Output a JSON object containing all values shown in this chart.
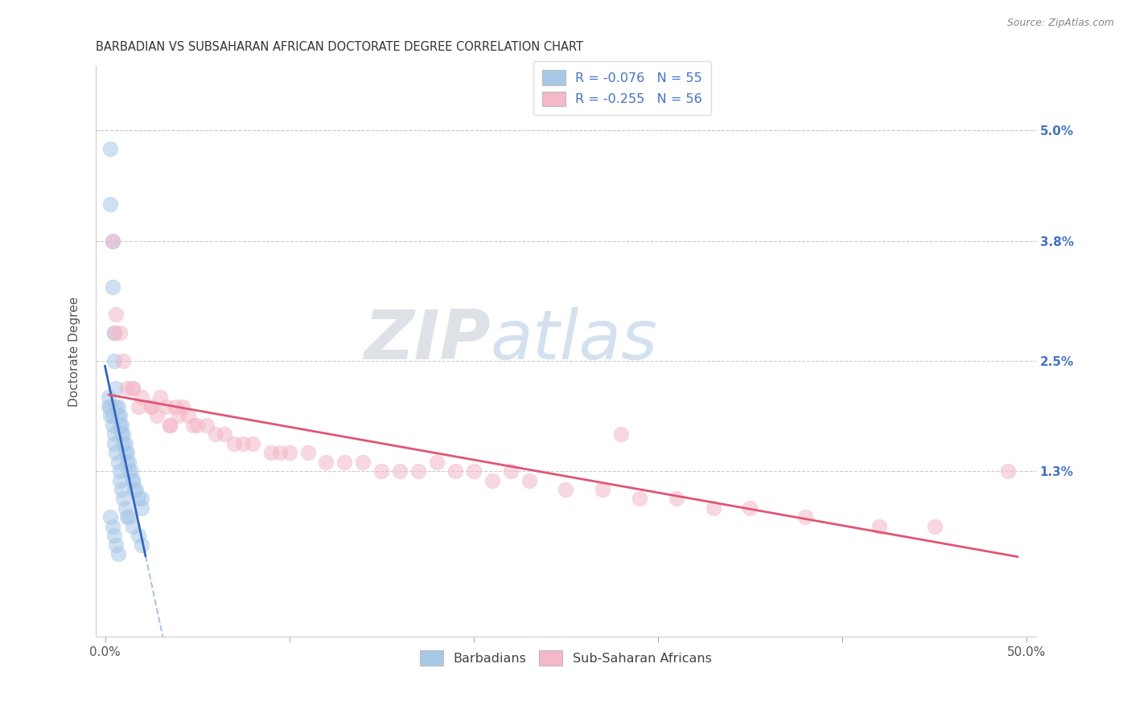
{
  "title": "BARBADIAN VS SUBSAHARAN AFRICAN DOCTORATE DEGREE CORRELATION CHART",
  "source": "Source: ZipAtlas.com",
  "ylabel": "Doctorate Degree",
  "ylabel_ticks_right": [
    "5.0%",
    "3.8%",
    "2.5%",
    "1.3%"
  ],
  "ylabel_vals_right": [
    0.05,
    0.038,
    0.025,
    0.013
  ],
  "ylim": [
    -0.005,
    0.057
  ],
  "xlim": [
    -0.005,
    0.505
  ],
  "watermark_zip": "ZIP",
  "watermark_atlas": "atlas",
  "barbadian_color": "#a8c8e8",
  "subsaharan_color": "#f4b8c8",
  "barbadian_line_color": "#3366bb",
  "subsaharan_line_color": "#e05575",
  "dashed_line_color": "#88aadd",
  "legend_blue_label": "R = -0.076   N = 55",
  "legend_pink_label": "R = -0.255   N = 56",
  "legend_barbadian": "Barbadians",
  "legend_subsaharan": "Sub-Saharan Africans",
  "barbadian_x": [
    0.003,
    0.003,
    0.004,
    0.004,
    0.005,
    0.005,
    0.006,
    0.006,
    0.007,
    0.007,
    0.008,
    0.008,
    0.009,
    0.009,
    0.01,
    0.01,
    0.011,
    0.011,
    0.012,
    0.012,
    0.013,
    0.013,
    0.014,
    0.015,
    0.015,
    0.016,
    0.017,
    0.018,
    0.02,
    0.02,
    0.002,
    0.002,
    0.003,
    0.003,
    0.004,
    0.004,
    0.005,
    0.005,
    0.006,
    0.007,
    0.008,
    0.008,
    0.009,
    0.01,
    0.011,
    0.012,
    0.013,
    0.015,
    0.018,
    0.02,
    0.003,
    0.004,
    0.005,
    0.006,
    0.007
  ],
  "barbadian_y": [
    0.048,
    0.042,
    0.038,
    0.033,
    0.028,
    0.025,
    0.022,
    0.02,
    0.02,
    0.019,
    0.019,
    0.018,
    0.018,
    0.017,
    0.017,
    0.016,
    0.016,
    0.015,
    0.015,
    0.014,
    0.014,
    0.013,
    0.013,
    0.012,
    0.012,
    0.011,
    0.011,
    0.01,
    0.01,
    0.009,
    0.021,
    0.02,
    0.02,
    0.019,
    0.019,
    0.018,
    0.017,
    0.016,
    0.015,
    0.014,
    0.013,
    0.012,
    0.011,
    0.01,
    0.009,
    0.008,
    0.008,
    0.007,
    0.006,
    0.005,
    0.008,
    0.007,
    0.006,
    0.005,
    0.004
  ],
  "subsaharan_x": [
    0.004,
    0.006,
    0.008,
    0.01,
    0.012,
    0.015,
    0.018,
    0.02,
    0.025,
    0.028,
    0.03,
    0.033,
    0.035,
    0.038,
    0.04,
    0.042,
    0.045,
    0.048,
    0.05,
    0.055,
    0.06,
    0.065,
    0.07,
    0.075,
    0.08,
    0.09,
    0.095,
    0.1,
    0.11,
    0.12,
    0.13,
    0.14,
    0.15,
    0.16,
    0.17,
    0.18,
    0.19,
    0.2,
    0.21,
    0.22,
    0.23,
    0.25,
    0.27,
    0.29,
    0.31,
    0.33,
    0.35,
    0.38,
    0.42,
    0.45,
    0.005,
    0.015,
    0.025,
    0.035,
    0.28,
    0.49
  ],
  "subsaharan_y": [
    0.038,
    0.03,
    0.028,
    0.025,
    0.022,
    0.022,
    0.02,
    0.021,
    0.02,
    0.019,
    0.021,
    0.02,
    0.018,
    0.02,
    0.019,
    0.02,
    0.019,
    0.018,
    0.018,
    0.018,
    0.017,
    0.017,
    0.016,
    0.016,
    0.016,
    0.015,
    0.015,
    0.015,
    0.015,
    0.014,
    0.014,
    0.014,
    0.013,
    0.013,
    0.013,
    0.014,
    0.013,
    0.013,
    0.012,
    0.013,
    0.012,
    0.011,
    0.011,
    0.01,
    0.01,
    0.009,
    0.009,
    0.008,
    0.007,
    0.007,
    0.028,
    0.022,
    0.02,
    0.018,
    0.017,
    0.013
  ],
  "grid_color": "#cccccc",
  "background_color": "#ffffff",
  "title_fontsize": 10.5,
  "tick_fontsize": 10,
  "right_tick_color": "#4472c4"
}
